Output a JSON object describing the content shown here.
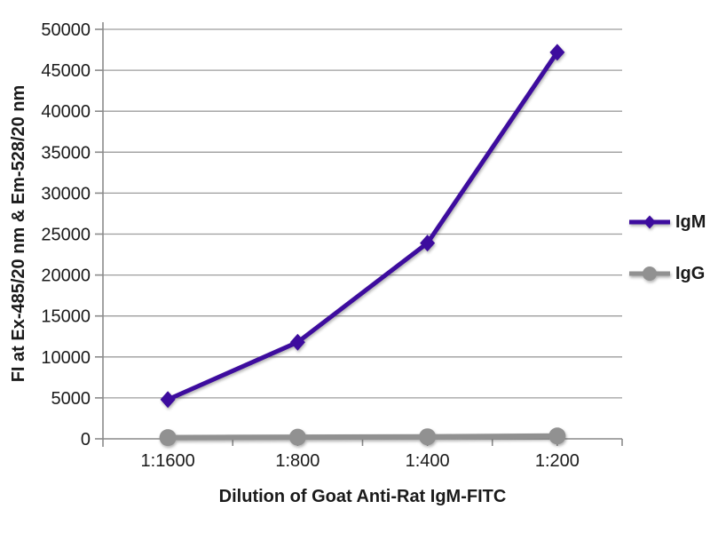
{
  "chart_data": {
    "type": "line",
    "title": "",
    "xlabel": "Dilution of Goat Anti-Rat IgM-FITC",
    "ylabel": "FI at Ex-485/20 nm & Em-528/20 nm",
    "categories": [
      "1:1600",
      "1:800",
      "1:400",
      "1:200"
    ],
    "series": [
      {
        "name": "IgM",
        "marker": "diamond",
        "color": "#3d0c9e",
        "values": [
          4800,
          11800,
          23900,
          47200
        ]
      },
      {
        "name": "IgG",
        "marker": "circle",
        "color": "#919191",
        "values": [
          150,
          200,
          250,
          350
        ]
      }
    ],
    "ylim": [
      0,
      50000
    ],
    "yticks": [
      0,
      5000,
      10000,
      15000,
      20000,
      25000,
      30000,
      35000,
      40000,
      45000,
      50000
    ],
    "grid": "horizontal",
    "legend_position": "right",
    "legend_entries": [
      "IgM",
      "IgG"
    ]
  },
  "colors": {
    "background": "#ffffff",
    "gridline": "#9d9d9d",
    "axis": "#8a8a8a",
    "text": "#1a1a1a",
    "igm": "#3d0c9e",
    "igg": "#919191"
  }
}
